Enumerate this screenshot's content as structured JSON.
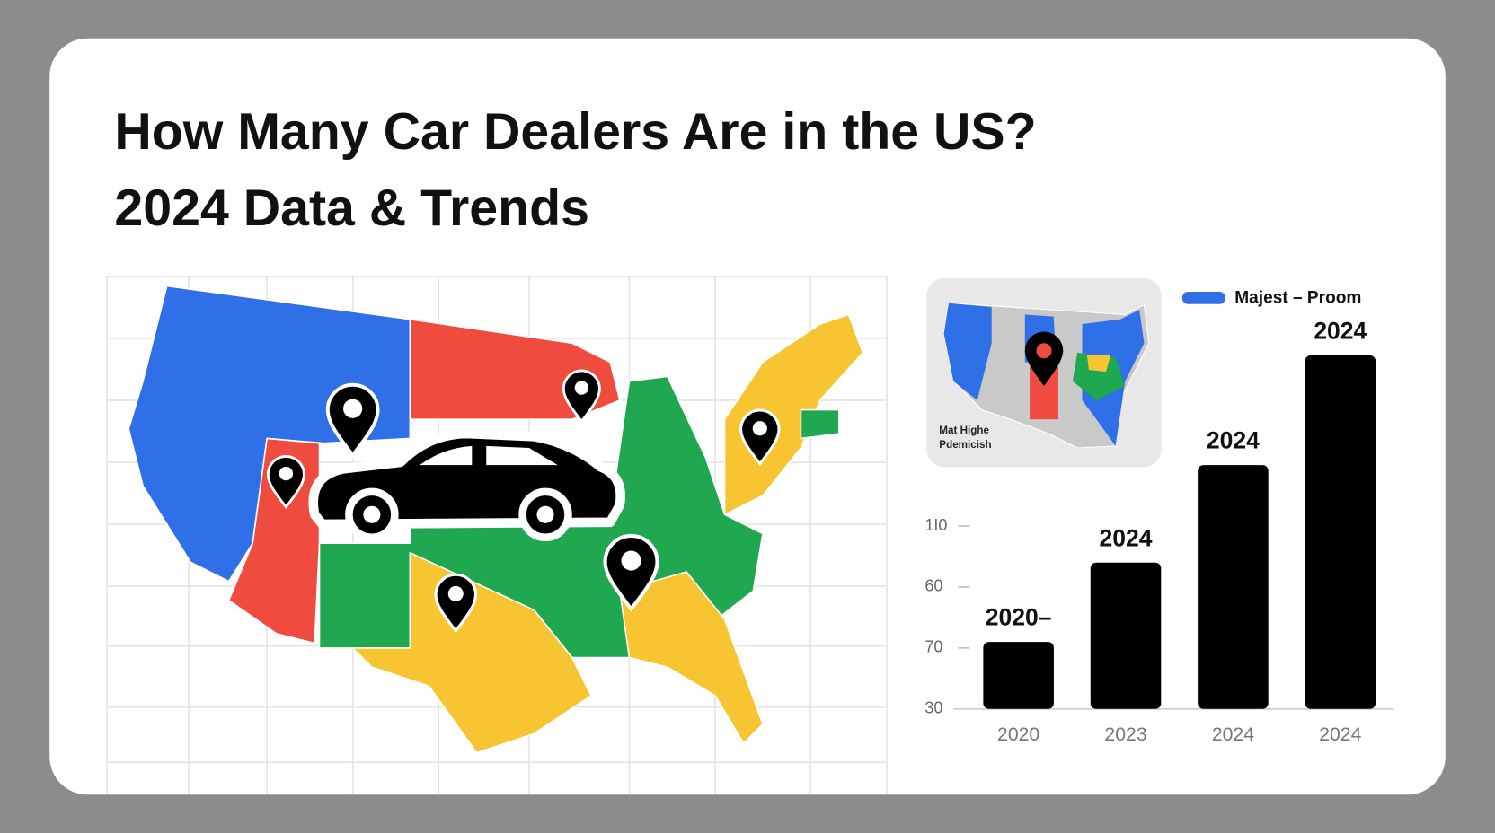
{
  "header": {
    "title_lines": [
      "How Many Car Dealers Are in the US?",
      "2024 Data & Trends"
    ]
  },
  "inset_map": {
    "label_lines": [
      "Mat Highe",
      "Pdemicish"
    ]
  },
  "chart_data": {
    "type": "bar",
    "legend": {
      "label": "Majest – Proom",
      "color": "#2f6fe8"
    },
    "categories": [
      "2020",
      "2023",
      "2024",
      "2024"
    ],
    "values": [
      1.1,
      2.4,
      4.0,
      5.8
    ],
    "bar_labels": [
      "2020–",
      "2024",
      "2024",
      "2024"
    ],
    "y_labels": [
      "30",
      "70",
      "60",
      "1I0"
    ],
    "ylim": [
      0,
      6
    ],
    "color": "#000000"
  }
}
